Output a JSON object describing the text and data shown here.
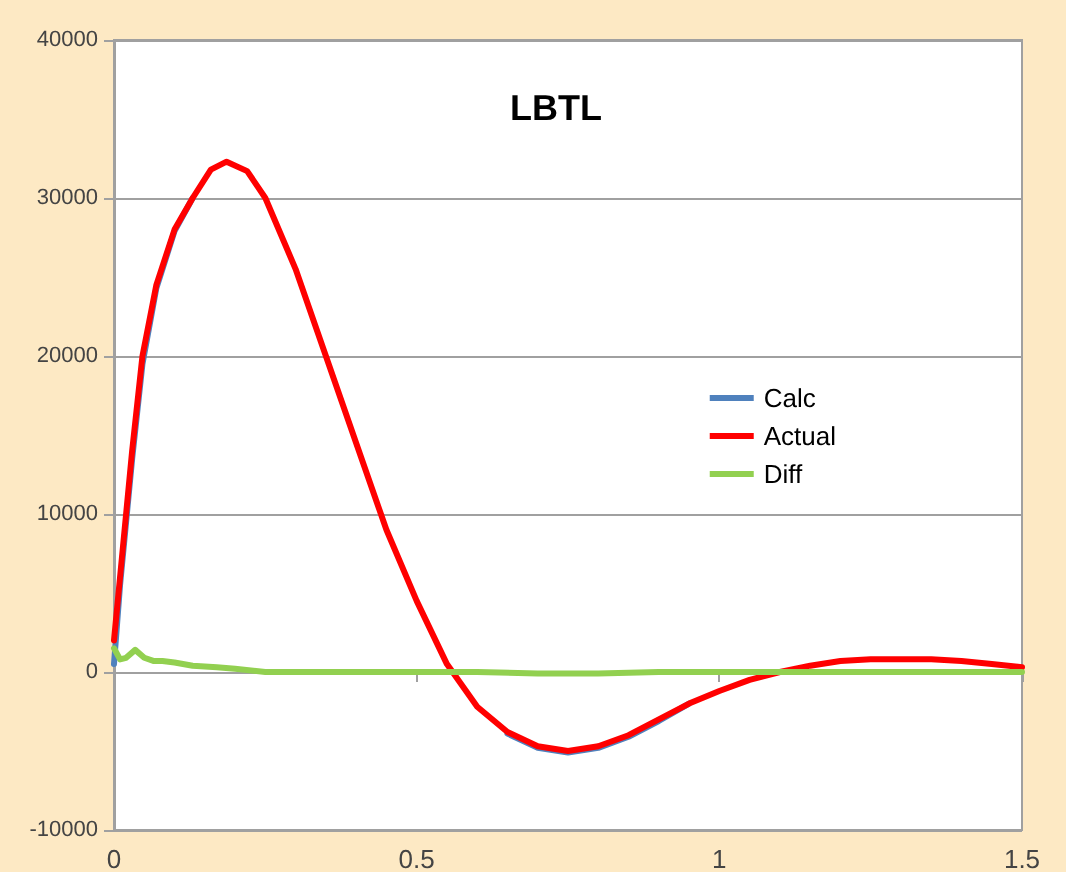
{
  "chart_data": {
    "type": "line",
    "title": "LBTL",
    "xlim": [
      0,
      1.5
    ],
    "xticks": [
      0,
      0.5,
      1,
      1.5
    ],
    "ylim": [
      -10000,
      40000
    ],
    "yticks": [
      -10000,
      0,
      10000,
      20000,
      30000,
      40000
    ],
    "grid": "y",
    "legend": "right",
    "marker": "none",
    "line_style": "solid",
    "series": [
      {
        "name": "Calc",
        "color": "#4f81bd",
        "x": [
          0,
          0.01,
          0.02,
          0.03,
          0.047,
          0.07,
          0.1,
          0.13,
          0.16,
          0.186,
          0.22,
          0.25,
          0.3,
          0.35,
          0.4,
          0.45,
          0.5,
          0.55,
          0.6,
          0.65,
          0.7,
          0.75,
          0.8,
          0.85,
          0.9,
          0.95
        ],
        "values": [
          500,
          5500,
          9500,
          13500,
          19500,
          24300,
          27900,
          30000,
          null,
          null,
          null,
          null,
          null,
          null,
          null,
          null,
          null,
          null,
          null,
          -3900,
          -4800,
          -5100,
          -4800,
          -4100,
          -3100,
          -2000
        ]
      },
      {
        "name": "Actual",
        "color": "#ff0000",
        "x": [
          0,
          0.01,
          0.02,
          0.03,
          0.047,
          0.07,
          0.1,
          0.13,
          0.16,
          0.186,
          0.22,
          0.25,
          0.3,
          0.35,
          0.4,
          0.45,
          0.5,
          0.55,
          0.6,
          0.65,
          0.7,
          0.75,
          0.8,
          0.85,
          0.9,
          0.95,
          1.0,
          1.05,
          1.1,
          1.15,
          1.2,
          1.25,
          1.3,
          1.35,
          1.4,
          1.45,
          1.5
        ],
        "values": [
          2000,
          6000,
          10000,
          14000,
          20000,
          24500,
          28000,
          30000,
          31800,
          32300,
          31700,
          30000,
          25500,
          20000,
          14500,
          9000,
          4500,
          500,
          -2200,
          -3800,
          -4700,
          -5000,
          -4700,
          -4000,
          -3000,
          -2000,
          -1200,
          -500,
          0,
          400,
          700,
          800,
          800,
          800,
          700,
          500,
          300
        ]
      },
      {
        "name": "Diff",
        "color": "#92d050",
        "x": [
          0,
          0.01,
          0.02,
          0.035,
          0.05,
          0.065,
          0.08,
          0.1,
          0.13,
          0.17,
          0.2,
          0.25,
          0.3,
          0.4,
          0.5,
          0.6,
          0.7,
          0.8,
          0.9,
          1.0,
          1.1,
          1.2,
          1.3,
          1.4,
          1.5
        ],
        "values": [
          1500,
          800,
          900,
          1400,
          900,
          700,
          700,
          600,
          400,
          300,
          200,
          0,
          0,
          0,
          0,
          0,
          -100,
          -100,
          0,
          0,
          0,
          0,
          0,
          0,
          0
        ]
      }
    ]
  }
}
